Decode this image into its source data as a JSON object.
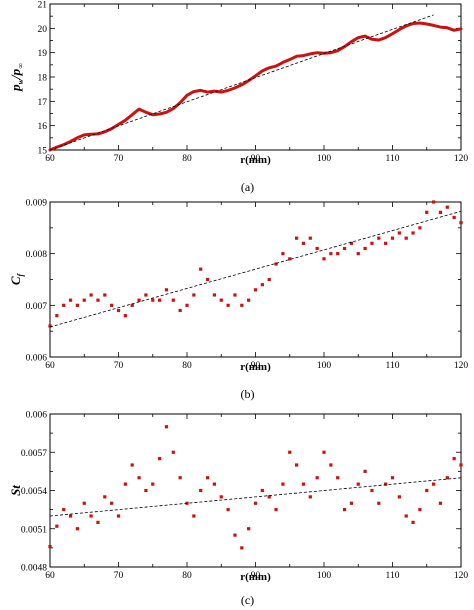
{
  "chart_data": [
    {
      "type": "line",
      "panel_caption": "(a)",
      "xlabel": "r(mm)",
      "ylabel_main": "p",
      "ylabel_num_sub": "w",
      "ylabel_den": "/p",
      "ylabel_den_sub": "∞",
      "xlim": [
        60,
        120
      ],
      "ylim": [
        15,
        21
      ],
      "xticks": [
        "60",
        "70",
        "80",
        "90",
        "100",
        "110",
        "120"
      ],
      "yticks": [
        "15",
        "16",
        "17",
        "18",
        "19",
        "20",
        "21"
      ],
      "series": [
        {
          "style": "thick-solid",
          "color": "#cc1111",
          "x": [
            60,
            61,
            62,
            63,
            64,
            65,
            66,
            67,
            68,
            69,
            70,
            71,
            72,
            73,
            74,
            75,
            76,
            77,
            78,
            79,
            80,
            81,
            82,
            83,
            84,
            85,
            86,
            87,
            88,
            89,
            90,
            91,
            92,
            93,
            94,
            95,
            96,
            97,
            98,
            99,
            100,
            101,
            102,
            103,
            104,
            105,
            106,
            107,
            108,
            109,
            110,
            111,
            112,
            113,
            114,
            115,
            116,
            117,
            118,
            119,
            120
          ],
          "y": [
            15.0,
            15.12,
            15.22,
            15.35,
            15.5,
            15.62,
            15.65,
            15.66,
            15.75,
            15.88,
            16.05,
            16.22,
            16.45,
            16.68,
            16.55,
            16.45,
            16.48,
            16.55,
            16.7,
            16.95,
            17.25,
            17.4,
            17.45,
            17.38,
            17.42,
            17.38,
            17.45,
            17.55,
            17.68,
            17.85,
            18.05,
            18.25,
            18.38,
            18.45,
            18.6,
            18.72,
            18.85,
            18.88,
            18.95,
            19.0,
            18.98,
            19.0,
            19.08,
            19.25,
            19.45,
            19.62,
            19.68,
            19.55,
            19.52,
            19.62,
            19.78,
            19.95,
            20.1,
            20.2,
            20.22,
            20.18,
            20.12,
            20.05,
            20.02,
            19.92,
            19.98
          ]
        },
        {
          "style": "dashed-fit",
          "color": "#000000",
          "x": [
            60,
            116
          ],
          "y": [
            15.0,
            20.55
          ]
        }
      ]
    },
    {
      "type": "scatter",
      "panel_caption": "(b)",
      "xlabel": "r(mm)",
      "ylabel_main": "C",
      "ylabel_sub": "f",
      "xlim": [
        60,
        120
      ],
      "ylim": [
        0.006,
        0.009
      ],
      "xticks": [
        "60",
        "70",
        "80",
        "90",
        "100",
        "110",
        "120"
      ],
      "yticks": [
        "0.006",
        "0.007",
        "0.008",
        "0.009"
      ],
      "series": [
        {
          "style": "points",
          "color": "#cc1111",
          "x": [
            60,
            61,
            62,
            63,
            64,
            65,
            66,
            67,
            68,
            69,
            70,
            71,
            72,
            73,
            74,
            75,
            76,
            77,
            78,
            79,
            80,
            81,
            82,
            83,
            84,
            85,
            86,
            87,
            88,
            89,
            90,
            91,
            92,
            93,
            94,
            95,
            96,
            97,
            98,
            99,
            100,
            101,
            102,
            103,
            104,
            105,
            106,
            107,
            108,
            109,
            110,
            111,
            112,
            113,
            114,
            115,
            116,
            117,
            118,
            119,
            120
          ],
          "y": [
            0.0066,
            0.0068,
            0.007,
            0.0071,
            0.007,
            0.0071,
            0.0072,
            0.0071,
            0.0072,
            0.007,
            0.0069,
            0.0068,
            0.007,
            0.0071,
            0.0072,
            0.0071,
            0.0071,
            0.0073,
            0.0071,
            0.0069,
            0.007,
            0.0072,
            0.0077,
            0.0075,
            0.0072,
            0.0071,
            0.007,
            0.0072,
            0.007,
            0.0071,
            0.0073,
            0.0074,
            0.0075,
            0.0078,
            0.008,
            0.0079,
            0.0083,
            0.0082,
            0.0083,
            0.0081,
            0.0079,
            0.008,
            0.008,
            0.0081,
            0.0082,
            0.008,
            0.0081,
            0.0082,
            0.0083,
            0.0082,
            0.0083,
            0.0084,
            0.0083,
            0.0084,
            0.0085,
            0.0088,
            0.009,
            0.0088,
            0.0089,
            0.0087,
            0.0086
          ]
        },
        {
          "style": "dashed-fit",
          "color": "#000000",
          "x": [
            60,
            120
          ],
          "y": [
            0.00658,
            0.00882
          ]
        }
      ]
    },
    {
      "type": "scatter",
      "panel_caption": "(c)",
      "xlabel": "r(mm)",
      "ylabel_main": "St",
      "xlim": [
        60,
        120
      ],
      "ylim": [
        0.0048,
        0.006
      ],
      "xticks": [
        "60",
        "70",
        "80",
        "90",
        "100",
        "110",
        "120"
      ],
      "yticks": [
        "0.0048",
        "0.0051",
        "0.0054",
        "0.0057",
        "0.006"
      ],
      "series": [
        {
          "style": "points",
          "color": "#cc1111",
          "x": [
            60,
            61,
            62,
            63,
            64,
            65,
            66,
            67,
            68,
            69,
            70,
            71,
            72,
            73,
            74,
            75,
            76,
            77,
            78,
            79,
            80,
            81,
            82,
            83,
            84,
            85,
            86,
            87,
            88,
            89,
            90,
            91,
            92,
            93,
            94,
            95,
            96,
            97,
            98,
            99,
            100,
            101,
            102,
            103,
            104,
            105,
            106,
            107,
            108,
            109,
            110,
            111,
            112,
            113,
            114,
            115,
            116,
            117,
            118,
            119,
            120
          ],
          "y": [
            0.00496,
            0.00512,
            0.00525,
            0.0052,
            0.0051,
            0.0053,
            0.0052,
            0.00515,
            0.00535,
            0.0053,
            0.0052,
            0.00545,
            0.0056,
            0.0055,
            0.0054,
            0.00545,
            0.00565,
            0.0059,
            0.0057,
            0.0055,
            0.0053,
            0.0052,
            0.0054,
            0.0055,
            0.00545,
            0.00535,
            0.00525,
            0.00505,
            0.00495,
            0.0051,
            0.0053,
            0.0054,
            0.00535,
            0.00525,
            0.00545,
            0.0057,
            0.0056,
            0.00545,
            0.00535,
            0.0055,
            0.0057,
            0.0056,
            0.0055,
            0.00525,
            0.0053,
            0.00545,
            0.00555,
            0.0054,
            0.0053,
            0.00545,
            0.0055,
            0.00535,
            0.0052,
            0.00515,
            0.00525,
            0.0054,
            0.00545,
            0.0053,
            0.0055,
            0.00565,
            0.0056
          ]
        },
        {
          "style": "dashed-fit",
          "color": "#000000",
          "x": [
            60,
            120
          ],
          "y": [
            0.0052,
            0.0055
          ]
        }
      ]
    }
  ]
}
